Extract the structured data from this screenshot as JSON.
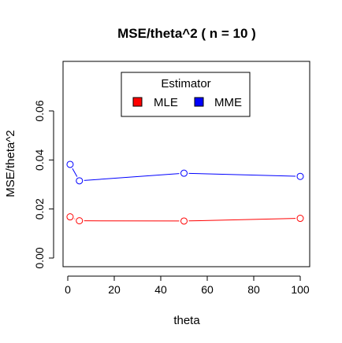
{
  "chart_data": {
    "type": "line",
    "title": "MSE/theta^2 ( n = 10 )",
    "xlabel": "theta",
    "ylabel": "MSE/theta^2",
    "x": [
      1,
      5,
      50,
      100
    ],
    "xlim": [
      0,
      102
    ],
    "ylim": [
      0,
      0.08
    ],
    "xticks": [
      0,
      20,
      40,
      60,
      80,
      100
    ],
    "yticks": [
      0.0,
      0.02,
      0.04,
      0.06
    ],
    "xtick_labels": [
      "0",
      "20",
      "40",
      "60",
      "80",
      "100"
    ],
    "ytick_labels": [
      "0.00",
      "0.02",
      "0.04",
      "0.06"
    ],
    "legend": {
      "title": "Estimator",
      "placement": "top-center"
    },
    "series": [
      {
        "name": "MLE",
        "color": "#ff0000",
        "values": [
          0.0168,
          0.0152,
          0.0151,
          0.0162
        ]
      },
      {
        "name": "MME",
        "color": "#0000ff",
        "values": [
          0.0382,
          0.0315,
          0.0346,
          0.0333
        ]
      }
    ],
    "grid": false
  }
}
